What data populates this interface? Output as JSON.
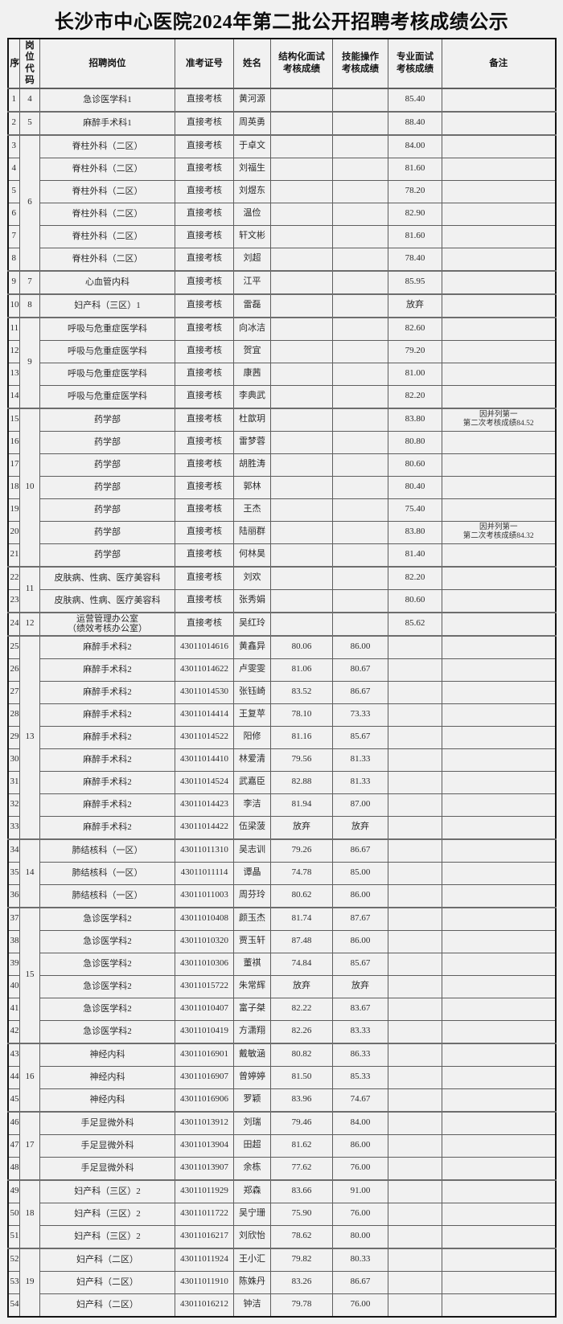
{
  "page": {
    "title": "长沙市中心医院2024年第二批公开招聘考核成绩公示",
    "background_color": "#f1f1f1",
    "outer_border_color": "#141414",
    "inner_border_color": "#5e5e5e"
  },
  "table": {
    "columns": [
      {
        "key": "seq",
        "label": "序"
      },
      {
        "key": "code",
        "label": "岗位\n代码"
      },
      {
        "key": "position",
        "label": "招聘岗位"
      },
      {
        "key": "ticket",
        "label": "准考证号"
      },
      {
        "key": "name",
        "label": "姓名"
      },
      {
        "key": "structured",
        "label": "结构化面试\n考核成绩"
      },
      {
        "key": "skill",
        "label": "技能操作\n考核成绩"
      },
      {
        "key": "professional",
        "label": "专业面试\n考核成绩"
      },
      {
        "key": "remark",
        "label": "备注"
      }
    ],
    "rows": [
      {
        "seq": "1",
        "code": "4",
        "code_rowspan": 1,
        "group_start": true,
        "position": "急诊医学科1",
        "ticket": "直接考核",
        "name": "黄河源",
        "structured": "",
        "skill": "",
        "professional": "85.40",
        "remark": ""
      },
      {
        "seq": "2",
        "code": "5",
        "code_rowspan": 1,
        "group_start": true,
        "position": "麻醉手术科1",
        "ticket": "直接考核",
        "name": "周英勇",
        "structured": "",
        "skill": "",
        "professional": "88.40",
        "remark": ""
      },
      {
        "seq": "3",
        "code": "6",
        "code_rowspan": 6,
        "group_start": true,
        "position": "脊柱外科（二区）",
        "ticket": "直接考核",
        "name": "于卓文",
        "structured": "",
        "skill": "",
        "professional": "84.00",
        "remark": ""
      },
      {
        "seq": "4",
        "group_start": false,
        "position": "脊柱外科（二区）",
        "ticket": "直接考核",
        "name": "刘福生",
        "structured": "",
        "skill": "",
        "professional": "81.60",
        "remark": ""
      },
      {
        "seq": "5",
        "group_start": false,
        "position": "脊柱外科（二区）",
        "ticket": "直接考核",
        "name": "刘煜东",
        "structured": "",
        "skill": "",
        "professional": "78.20",
        "remark": ""
      },
      {
        "seq": "6",
        "group_start": false,
        "position": "脊柱外科（二区）",
        "ticket": "直接考核",
        "name": "温俭",
        "structured": "",
        "skill": "",
        "professional": "82.90",
        "remark": ""
      },
      {
        "seq": "7",
        "group_start": false,
        "position": "脊柱外科（二区）",
        "ticket": "直接考核",
        "name": "轩文彬",
        "structured": "",
        "skill": "",
        "professional": "81.60",
        "remark": ""
      },
      {
        "seq": "8",
        "group_start": false,
        "position": "脊柱外科（二区）",
        "ticket": "直接考核",
        "name": "刘超",
        "structured": "",
        "skill": "",
        "professional": "78.40",
        "remark": ""
      },
      {
        "seq": "9",
        "code": "7",
        "code_rowspan": 1,
        "group_start": true,
        "position": "心血管内科",
        "ticket": "直接考核",
        "name": "江平",
        "structured": "",
        "skill": "",
        "professional": "85.95",
        "remark": ""
      },
      {
        "seq": "10",
        "code": "8",
        "code_rowspan": 1,
        "group_start": true,
        "position": "妇产科（三区）1",
        "ticket": "直接考核",
        "name": "雷磊",
        "structured": "",
        "skill": "",
        "professional": "放弃",
        "remark": ""
      },
      {
        "seq": "11",
        "code": "9",
        "code_rowspan": 4,
        "group_start": true,
        "position": "呼吸与危重症医学科",
        "ticket": "直接考核",
        "name": "向冰洁",
        "structured": "",
        "skill": "",
        "professional": "82.60",
        "remark": ""
      },
      {
        "seq": "12",
        "group_start": false,
        "position": "呼吸与危重症医学科",
        "ticket": "直接考核",
        "name": "贺宜",
        "structured": "",
        "skill": "",
        "professional": "79.20",
        "remark": ""
      },
      {
        "seq": "13",
        "group_start": false,
        "position": "呼吸与危重症医学科",
        "ticket": "直接考核",
        "name": "康茜",
        "structured": "",
        "skill": "",
        "professional": "81.00",
        "remark": ""
      },
      {
        "seq": "14",
        "group_start": false,
        "position": "呼吸与危重症医学科",
        "ticket": "直接考核",
        "name": "李典武",
        "structured": "",
        "skill": "",
        "professional": "82.20",
        "remark": ""
      },
      {
        "seq": "15",
        "code": "10",
        "code_rowspan": 7,
        "group_start": true,
        "position": "药学部",
        "ticket": "直接考核",
        "name": "杜歆玥",
        "structured": "",
        "skill": "",
        "professional": "83.80",
        "remark": "因并列第一\n第二次考核成绩84.52"
      },
      {
        "seq": "16",
        "group_start": false,
        "position": "药学部",
        "ticket": "直接考核",
        "name": "雷梦蓉",
        "structured": "",
        "skill": "",
        "professional": "80.80",
        "remark": ""
      },
      {
        "seq": "17",
        "group_start": false,
        "position": "药学部",
        "ticket": "直接考核",
        "name": "胡胜涛",
        "structured": "",
        "skill": "",
        "professional": "80.60",
        "remark": ""
      },
      {
        "seq": "18",
        "group_start": false,
        "position": "药学部",
        "ticket": "直接考核",
        "name": "郭林",
        "structured": "",
        "skill": "",
        "professional": "80.40",
        "remark": ""
      },
      {
        "seq": "19",
        "group_start": false,
        "position": "药学部",
        "ticket": "直接考核",
        "name": "王杰",
        "structured": "",
        "skill": "",
        "professional": "75.40",
        "remark": ""
      },
      {
        "seq": "20",
        "group_start": false,
        "position": "药学部",
        "ticket": "直接考核",
        "name": "陆丽群",
        "structured": "",
        "skill": "",
        "professional": "83.80",
        "remark": "因并列第一\n第二次考核成绩84.32"
      },
      {
        "seq": "21",
        "group_start": false,
        "position": "药学部",
        "ticket": "直接考核",
        "name": "何林昊",
        "structured": "",
        "skill": "",
        "professional": "81.40",
        "remark": ""
      },
      {
        "seq": "22",
        "code": "11",
        "code_rowspan": 2,
        "group_start": true,
        "position": "皮肤病、性病、医疗美容科",
        "ticket": "直接考核",
        "name": "刘欢",
        "structured": "",
        "skill": "",
        "professional": "82.20",
        "remark": ""
      },
      {
        "seq": "23",
        "group_start": false,
        "position": "皮肤病、性病、医疗美容科",
        "ticket": "直接考核",
        "name": "张秀娟",
        "structured": "",
        "skill": "",
        "professional": "80.60",
        "remark": ""
      },
      {
        "seq": "24",
        "code": "12",
        "code_rowspan": 1,
        "group_start": true,
        "position": "运营管理办公室\n（绩效考核办公室）",
        "ticket": "直接考核",
        "name": "吴红玲",
        "structured": "",
        "skill": "",
        "professional": "85.62",
        "remark": ""
      },
      {
        "seq": "25",
        "code": "13",
        "code_rowspan": 9,
        "group_start": true,
        "position": "麻醉手术科2",
        "ticket": "43011014616",
        "name": "黄鑫异",
        "structured": "80.06",
        "skill": "86.00",
        "professional": "",
        "remark": ""
      },
      {
        "seq": "26",
        "group_start": false,
        "position": "麻醉手术科2",
        "ticket": "43011014622",
        "name": "卢雯雯",
        "structured": "81.06",
        "skill": "80.67",
        "professional": "",
        "remark": ""
      },
      {
        "seq": "27",
        "group_start": false,
        "position": "麻醉手术科2",
        "ticket": "43011014530",
        "name": "张钰崎",
        "structured": "83.52",
        "skill": "86.67",
        "professional": "",
        "remark": ""
      },
      {
        "seq": "28",
        "group_start": false,
        "position": "麻醉手术科2",
        "ticket": "43011014414",
        "name": "王复苹",
        "structured": "78.10",
        "skill": "73.33",
        "professional": "",
        "remark": ""
      },
      {
        "seq": "29",
        "group_start": false,
        "position": "麻醉手术科2",
        "ticket": "43011014522",
        "name": "阳修",
        "structured": "81.16",
        "skill": "85.67",
        "professional": "",
        "remark": ""
      },
      {
        "seq": "30",
        "group_start": false,
        "position": "麻醉手术科2",
        "ticket": "43011014410",
        "name": "林爱清",
        "structured": "79.56",
        "skill": "81.33",
        "professional": "",
        "remark": ""
      },
      {
        "seq": "31",
        "group_start": false,
        "position": "麻醉手术科2",
        "ticket": "43011014524",
        "name": "武嘉臣",
        "structured": "82.88",
        "skill": "81.33",
        "professional": "",
        "remark": ""
      },
      {
        "seq": "32",
        "group_start": false,
        "position": "麻醉手术科2",
        "ticket": "43011014423",
        "name": "李洁",
        "structured": "81.94",
        "skill": "87.00",
        "professional": "",
        "remark": ""
      },
      {
        "seq": "33",
        "group_start": false,
        "position": "麻醉手术科2",
        "ticket": "43011014422",
        "name": "伍梁菠",
        "structured": "放弃",
        "skill": "放弃",
        "professional": "",
        "remark": ""
      },
      {
        "seq": "34",
        "code": "14",
        "code_rowspan": 3,
        "group_start": true,
        "position": "肺结核科（一区）",
        "ticket": "43011011310",
        "name": "吴志训",
        "structured": "79.26",
        "skill": "86.67",
        "professional": "",
        "remark": ""
      },
      {
        "seq": "35",
        "group_start": false,
        "position": "肺结核科（一区）",
        "ticket": "43011011114",
        "name": "谭晶",
        "structured": "74.78",
        "skill": "85.00",
        "professional": "",
        "remark": ""
      },
      {
        "seq": "36",
        "group_start": false,
        "position": "肺结核科（一区）",
        "ticket": "43011011003",
        "name": "周芬玲",
        "structured": "80.62",
        "skill": "86.00",
        "professional": "",
        "remark": ""
      },
      {
        "seq": "37",
        "code": "15",
        "code_rowspan": 6,
        "group_start": true,
        "position": "急诊医学科2",
        "ticket": "43011010408",
        "name": "颜玉杰",
        "structured": "81.74",
        "skill": "87.67",
        "professional": "",
        "remark": ""
      },
      {
        "seq": "38",
        "group_start": false,
        "position": "急诊医学科2",
        "ticket": "43011010320",
        "name": "贾玉轩",
        "structured": "87.48",
        "skill": "86.00",
        "professional": "",
        "remark": ""
      },
      {
        "seq": "39",
        "group_start": false,
        "position": "急诊医学科2",
        "ticket": "43011010306",
        "name": "董祺",
        "structured": "74.84",
        "skill": "85.67",
        "professional": "",
        "remark": ""
      },
      {
        "seq": "40",
        "group_start": false,
        "position": "急诊医学科2",
        "ticket": "43011015722",
        "name": "朱常辉",
        "structured": "放弃",
        "skill": "放弃",
        "professional": "",
        "remark": ""
      },
      {
        "seq": "41",
        "group_start": false,
        "position": "急诊医学科2",
        "ticket": "43011010407",
        "name": "富子桀",
        "structured": "82.22",
        "skill": "83.67",
        "professional": "",
        "remark": ""
      },
      {
        "seq": "42",
        "group_start": false,
        "position": "急诊医学科2",
        "ticket": "43011010419",
        "name": "方潇翔",
        "structured": "82.26",
        "skill": "83.33",
        "professional": "",
        "remark": ""
      },
      {
        "seq": "43",
        "code": "16",
        "code_rowspan": 3,
        "group_start": true,
        "position": "神经内科",
        "ticket": "43011016901",
        "name": "戴敏涵",
        "structured": "80.82",
        "skill": "86.33",
        "professional": "",
        "remark": ""
      },
      {
        "seq": "44",
        "group_start": false,
        "position": "神经内科",
        "ticket": "43011016907",
        "name": "曾婷婷",
        "structured": "81.50",
        "skill": "85.33",
        "professional": "",
        "remark": ""
      },
      {
        "seq": "45",
        "group_start": false,
        "position": "神经内科",
        "ticket": "43011016906",
        "name": "罗颖",
        "structured": "83.96",
        "skill": "74.67",
        "professional": "",
        "remark": ""
      },
      {
        "seq": "46",
        "code": "17",
        "code_rowspan": 3,
        "group_start": true,
        "position": "手足显微外科",
        "ticket": "43011013912",
        "name": "刘瑞",
        "structured": "79.46",
        "skill": "84.00",
        "professional": "",
        "remark": ""
      },
      {
        "seq": "47",
        "group_start": false,
        "position": "手足显微外科",
        "ticket": "43011013904",
        "name": "田超",
        "structured": "81.62",
        "skill": "86.00",
        "professional": "",
        "remark": ""
      },
      {
        "seq": "48",
        "group_start": false,
        "position": "手足显微外科",
        "ticket": "43011013907",
        "name": "余栋",
        "structured": "77.62",
        "skill": "76.00",
        "professional": "",
        "remark": ""
      },
      {
        "seq": "49",
        "code": "18",
        "code_rowspan": 3,
        "group_start": true,
        "position": "妇产科（三区）2",
        "ticket": "43011011929",
        "name": "郑森",
        "structured": "83.66",
        "skill": "91.00",
        "professional": "",
        "remark": ""
      },
      {
        "seq": "50",
        "group_start": false,
        "position": "妇产科（三区）2",
        "ticket": "43011011722",
        "name": "吴宁珊",
        "structured": "75.90",
        "skill": "76.00",
        "professional": "",
        "remark": ""
      },
      {
        "seq": "51",
        "group_start": false,
        "position": "妇产科（三区）2",
        "ticket": "43011016217",
        "name": "刘欣怡",
        "structured": "78.62",
        "skill": "80.00",
        "professional": "",
        "remark": ""
      },
      {
        "seq": "52",
        "code": "19",
        "code_rowspan": 3,
        "group_start": true,
        "position": "妇产科（二区）",
        "ticket": "43011011924",
        "name": "王小汇",
        "structured": "79.82",
        "skill": "80.33",
        "professional": "",
        "remark": ""
      },
      {
        "seq": "53",
        "group_start": false,
        "position": "妇产科（二区）",
        "ticket": "43011011910",
        "name": "陈姝丹",
        "structured": "83.26",
        "skill": "86.67",
        "professional": "",
        "remark": ""
      },
      {
        "seq": "54",
        "group_start": false,
        "position": "妇产科（二区）",
        "ticket": "43011016212",
        "name": "钟洁",
        "structured": "79.78",
        "skill": "76.00",
        "professional": "",
        "remark": ""
      }
    ]
  }
}
